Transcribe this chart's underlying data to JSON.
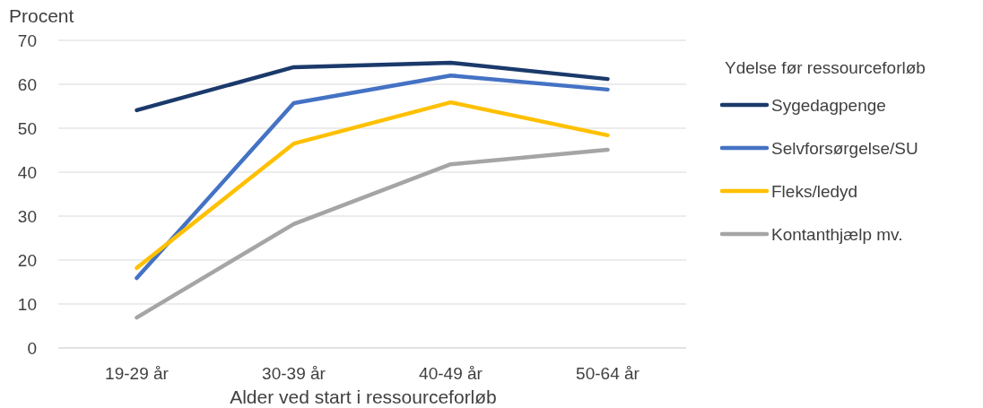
{
  "chart_data": {
    "type": "line",
    "xlabel": "Alder ved start i ressourceforløb",
    "ylabel": "Procent",
    "legend_title": "Ydelse før ressourceforløb",
    "categories": [
      "19-29 år",
      "30-39 år",
      "40-49 år",
      "50-64 år"
    ],
    "series": [
      {
        "name": "Sygedagpenge",
        "color": "#1b3a6b",
        "values": [
          54.1,
          63.9,
          64.9,
          61.2
        ]
      },
      {
        "name": "Selvforsørgelse/SU",
        "color": "#4472c4",
        "values": [
          15.9,
          55.7,
          62.0,
          58.8
        ]
      },
      {
        "name": "Fleks/ledyd",
        "color": "#ffc000",
        "values": [
          18.2,
          46.5,
          55.9,
          48.4
        ]
      },
      {
        "name": "Kontanthjælp mv.",
        "color": "#a5a5a5",
        "values": [
          6.9,
          28.2,
          41.8,
          45.1
        ]
      }
    ],
    "ylim": [
      0,
      70
    ],
    "yticks": [
      0,
      10,
      20,
      30,
      40,
      50,
      60,
      70
    ],
    "grid": "y",
    "legend": "right",
    "marker": "none",
    "line_style": "solid"
  }
}
